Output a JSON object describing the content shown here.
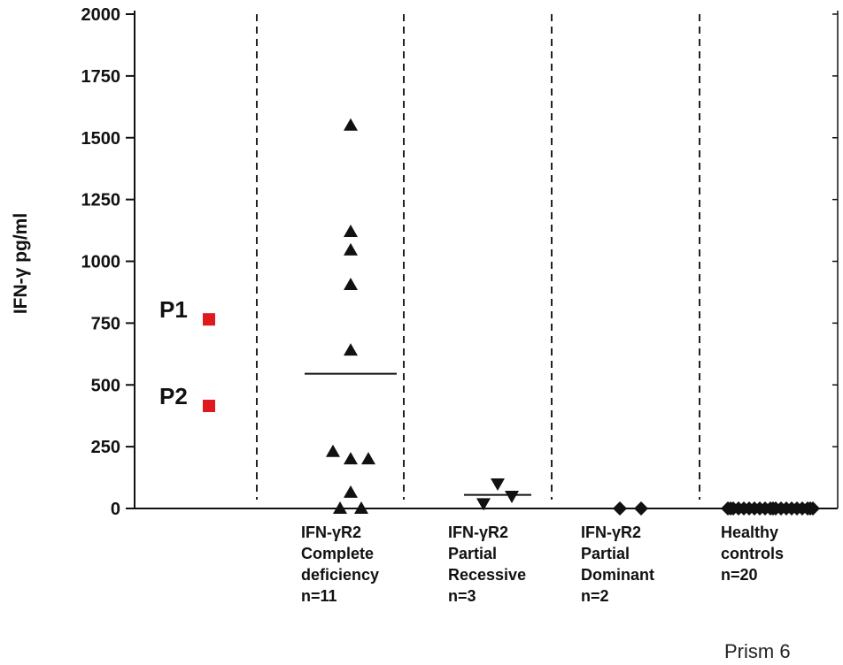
{
  "chart_data": {
    "type": "scatter",
    "ylabel": "IFN-γ pg/ml",
    "ylim": [
      0,
      2000
    ],
    "yticks": [
      0,
      250,
      500,
      750,
      1000,
      1250,
      1500,
      1750,
      2000
    ],
    "footer_text": "Prism 6",
    "groups": [
      {
        "label_lines": [],
        "marker": "square",
        "color": "#e0191e",
        "points": [
          {
            "label": "P1",
            "y": 765
          },
          {
            "label": "P2",
            "y": 415
          }
        ]
      },
      {
        "label_lines": [
          "IFN-γR2",
          "Complete",
          "deficiency",
          "n=11"
        ],
        "marker": "triangle-up",
        "color": "#111111",
        "values": [
          1550,
          1120,
          1045,
          905,
          640,
          230,
          200,
          200,
          65,
          0,
          0
        ],
        "offsets": [
          0,
          0,
          0,
          0,
          0,
          -1,
          0,
          1,
          0,
          -0.6,
          0.6
        ],
        "mean": 545
      },
      {
        "label_lines": [
          "IFN-γR2",
          "Partial",
          "Recessive",
          "n=3"
        ],
        "marker": "triangle-down",
        "color": "#111111",
        "values": [
          100,
          50,
          20
        ],
        "offsets": [
          0,
          0.8,
          -0.8
        ],
        "mean": 55
      },
      {
        "label_lines": [
          "IFN-γR2",
          "Partial",
          "Dominant",
          "n=2"
        ],
        "marker": "diamond",
        "color": "#111111",
        "values": [
          0,
          0
        ],
        "offsets": [
          -0.6,
          0.6
        ]
      },
      {
        "label_lines": [
          "Healthy",
          "controls",
          "n=20"
        ],
        "marker": "diamond",
        "color": "#111111",
        "values": [
          0,
          0,
          0,
          0,
          0,
          0,
          0,
          0,
          0,
          0,
          0,
          0,
          0,
          0,
          0,
          0,
          0,
          0,
          0,
          0
        ],
        "offsets": [
          -2.4,
          -2.1,
          -1.8,
          -1.5,
          -1.2,
          -0.9,
          -0.6,
          -0.3,
          0,
          0.3,
          0.6,
          0.9,
          1.2,
          1.5,
          1.8,
          2.1,
          2.4,
          -2.25,
          0.15,
          2.25
        ]
      }
    ]
  }
}
